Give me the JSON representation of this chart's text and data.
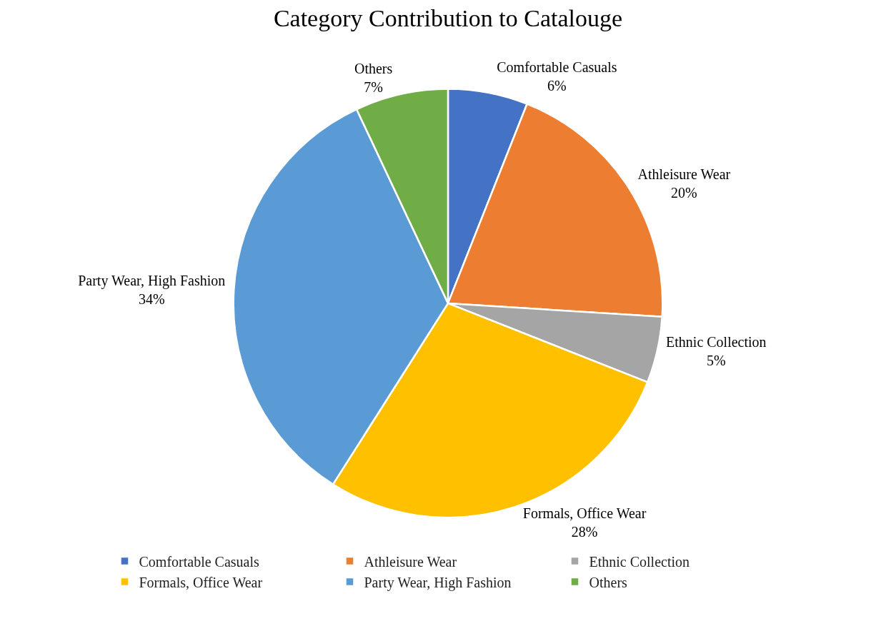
{
  "chart_data": {
    "type": "pie",
    "title": "Category Contribution to Catalouge",
    "categories": [
      "Comfortable Casuals",
      "Athleisure Wear",
      "Ethnic Collection",
      "Formals, Office Wear",
      "Party Wear, High Fashion",
      "Others"
    ],
    "values": [
      6,
      20,
      5,
      28,
      34,
      7
    ],
    "colors": [
      "#4472c4",
      "#ed7d31",
      "#a5a5a5",
      "#ffc000",
      "#5b9bd5",
      "#70ad47"
    ],
    "value_labels": [
      "6%",
      "20%",
      "5%",
      "28%",
      "34%",
      "7%"
    ],
    "legend": "bottom"
  }
}
